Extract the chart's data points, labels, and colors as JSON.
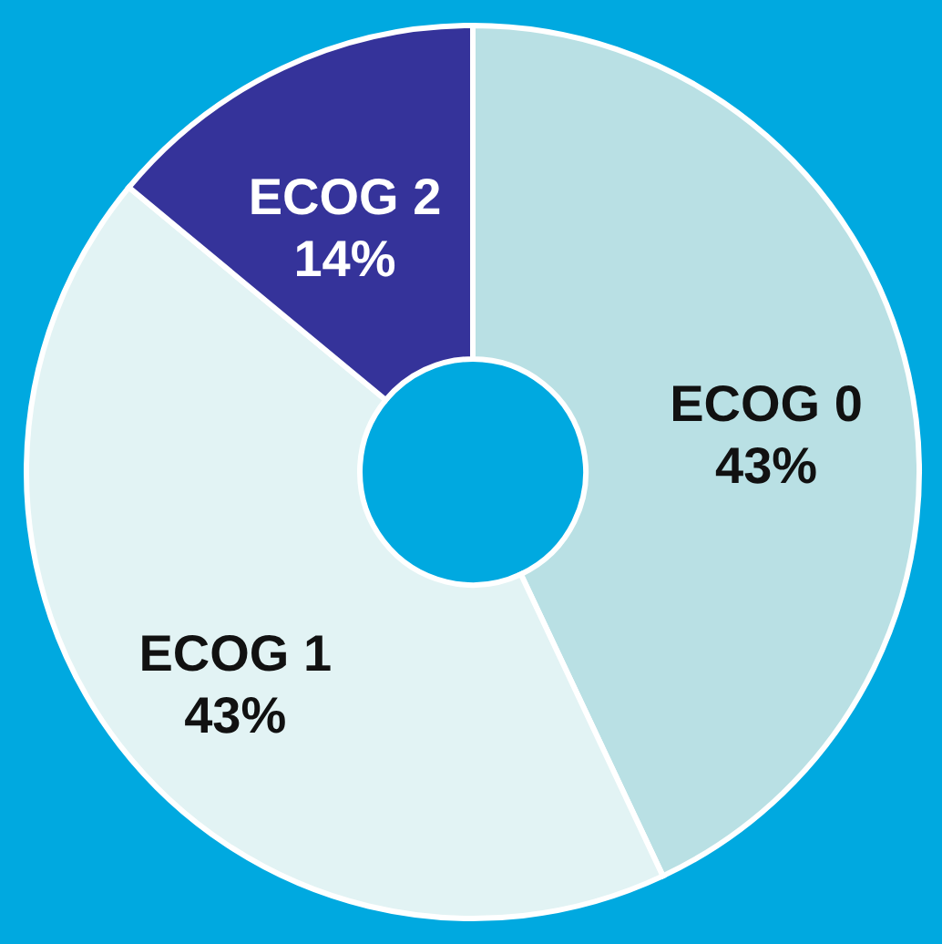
{
  "chart_data": {
    "type": "donut",
    "categories": [
      "ECOG 0",
      "ECOG 1",
      "ECOG 2"
    ],
    "values": [
      43,
      43,
      14
    ],
    "colors": [
      "#b9e0e4",
      "#e2f3f4",
      "#35339a"
    ],
    "value_labels": [
      "43%",
      "43%",
      "14%"
    ]
  }
}
